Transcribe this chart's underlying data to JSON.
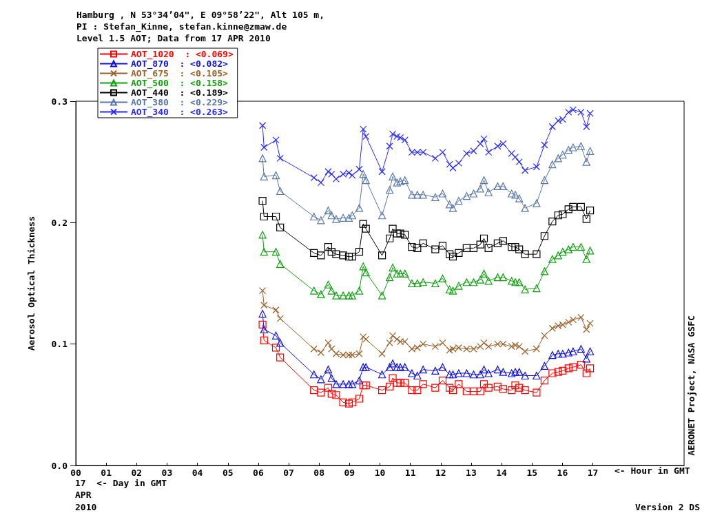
{
  "chart_data": {
    "type": "line",
    "title": "Hamburg , N 53°34’04\", E 09°58’22\", Alt 105 m,",
    "subtitle": "PI : Stefan_Kinne, stefan.kinne@zmaw.de\nLevel 1.5 AOT; Data from 17 APR 2010",
    "ylabel": "Aerosol Optical Thickness",
    "annotations": [
      "<- Hour in GMT",
      "17  <- Day in GMT",
      "APR",
      "2010",
      "AERONET Project, NASA GSFC",
      "Version 2 DS"
    ],
    "x": [
      6.14,
      6.19,
      6.58,
      6.72,
      7.83,
      8.06,
      8.3,
      8.41,
      8.56,
      8.79,
      8.98,
      9.09,
      9.32,
      9.45,
      9.54,
      10.07,
      10.32,
      10.42,
      10.56,
      10.67,
      10.82,
      11.05,
      11.23,
      11.42,
      11.82,
      12.06,
      12.29,
      12.4,
      12.59,
      12.85,
      13.08,
      13.3,
      13.42,
      13.57,
      13.87,
      14.05,
      14.33,
      14.45,
      14.58,
      14.77,
      15.15,
      15.41,
      15.67,
      15.86,
      16.01,
      16.2,
      16.35,
      16.61,
      16.79,
      16.91
    ],
    "xlim": [
      0,
      20
    ],
    "ylim": [
      0,
      0.3
    ],
    "xticks": [
      {
        "value": 0,
        "label": "00"
      },
      {
        "value": 1,
        "label": "01"
      },
      {
        "value": 2,
        "label": "02"
      },
      {
        "value": 3,
        "label": "03"
      },
      {
        "value": 4,
        "label": "04"
      },
      {
        "value": 5,
        "label": "05"
      },
      {
        "value": 6,
        "label": "06"
      },
      {
        "value": 7,
        "label": "07"
      },
      {
        "value": 8,
        "label": "08"
      },
      {
        "value": 9,
        "label": "09"
      },
      10,
      11,
      12,
      13,
      14,
      15,
      16,
      17
    ],
    "yticks": [
      {
        "value": 0,
        "label": "0.0"
      },
      {
        "value": 0.1,
        "label": "0.1"
      },
      {
        "value": 0.2,
        "label": "0.2"
      },
      {
        "value": 0.3,
        "label": "0.3"
      }
    ],
    "legend": "top left",
    "series": [
      {
        "name": "AOT_1020  : <0.069>",
        "color": "#ff0000",
        "marker": "square",
        "values": [
          0.116,
          0.103,
          0.097,
          0.089,
          0.062,
          0.06,
          0.064,
          0.059,
          0.058,
          0.052,
          0.051,
          0.052,
          0.055,
          0.066,
          0.066,
          0.062,
          0.065,
          0.072,
          0.068,
          0.068,
          0.068,
          0.062,
          0.062,
          0.067,
          0.064,
          0.07,
          0.064,
          0.062,
          0.067,
          0.061,
          0.061,
          0.061,
          0.067,
          0.064,
          0.065,
          0.063,
          0.062,
          0.066,
          0.064,
          0.062,
          0.06,
          0.07,
          0.076,
          0.077,
          0.078,
          0.08,
          0.081,
          0.083,
          0.076,
          0.08
        ]
      },
      {
        "name": "AOT_870  : <0.082>",
        "color": "#1010e0",
        "marker": "triangle",
        "values": [
          0.125,
          0.112,
          0.107,
          0.101,
          0.075,
          0.071,
          0.079,
          0.072,
          0.067,
          0.067,
          0.067,
          0.067,
          0.07,
          0.081,
          0.081,
          0.075,
          0.081,
          0.084,
          0.081,
          0.081,
          0.081,
          0.076,
          0.074,
          0.079,
          0.078,
          0.081,
          0.075,
          0.075,
          0.076,
          0.076,
          0.075,
          0.075,
          0.079,
          0.076,
          0.079,
          0.077,
          0.076,
          0.077,
          0.077,
          0.074,
          0.074,
          0.082,
          0.091,
          0.092,
          0.092,
          0.093,
          0.094,
          0.096,
          0.088,
          0.094
        ]
      },
      {
        "name": "AOT_675  : <0.105>",
        "color": "#99602a",
        "marker": "cross",
        "values": [
          0.144,
          0.132,
          0.128,
          0.121,
          0.096,
          0.093,
          0.101,
          0.096,
          0.092,
          0.091,
          0.091,
          0.091,
          0.092,
          0.106,
          0.104,
          0.092,
          0.101,
          0.107,
          0.104,
          0.102,
          0.102,
          0.096,
          0.097,
          0.1,
          0.098,
          0.101,
          0.095,
          0.096,
          0.097,
          0.096,
          0.096,
          0.098,
          0.101,
          0.098,
          0.1,
          0.1,
          0.098,
          0.099,
          0.098,
          0.094,
          0.096,
          0.107,
          0.113,
          0.115,
          0.116,
          0.118,
          0.12,
          0.122,
          0.112,
          0.117
        ]
      },
      {
        "name": "AOT_500  : <0.158>",
        "color": "#10a010",
        "marker": "triangle",
        "values": [
          0.19,
          0.176,
          0.176,
          0.166,
          0.144,
          0.141,
          0.149,
          0.144,
          0.14,
          0.14,
          0.14,
          0.14,
          0.144,
          0.164,
          0.159,
          0.14,
          0.155,
          0.163,
          0.158,
          0.158,
          0.158,
          0.15,
          0.15,
          0.151,
          0.15,
          0.154,
          0.145,
          0.144,
          0.148,
          0.151,
          0.151,
          0.153,
          0.158,
          0.152,
          0.155,
          0.155,
          0.152,
          0.151,
          0.151,
          0.145,
          0.146,
          0.16,
          0.17,
          0.173,
          0.176,
          0.178,
          0.18,
          0.18,
          0.17,
          0.177
        ]
      },
      {
        "name": "AOT_440  : <0.189>",
        "color": "#000000",
        "marker": "square",
        "values": [
          0.218,
          0.205,
          0.205,
          0.196,
          0.175,
          0.173,
          0.18,
          0.176,
          0.174,
          0.173,
          0.172,
          0.172,
          0.176,
          0.199,
          0.195,
          0.173,
          0.187,
          0.195,
          0.191,
          0.191,
          0.19,
          0.18,
          0.179,
          0.183,
          0.178,
          0.181,
          0.174,
          0.172,
          0.175,
          0.179,
          0.179,
          0.182,
          0.187,
          0.179,
          0.183,
          0.185,
          0.18,
          0.18,
          0.178,
          0.174,
          0.174,
          0.189,
          0.201,
          0.206,
          0.207,
          0.211,
          0.213,
          0.213,
          0.203,
          0.21
        ]
      },
      {
        "name": "AOT_380  : <0.229>",
        "color": "#5a78a8",
        "marker": "triangle",
        "values": [
          0.253,
          0.238,
          0.239,
          0.226,
          0.205,
          0.202,
          0.21,
          0.206,
          0.203,
          0.204,
          0.204,
          0.206,
          0.212,
          0.24,
          0.235,
          0.206,
          0.227,
          0.238,
          0.233,
          0.234,
          0.235,
          0.223,
          0.223,
          0.223,
          0.221,
          0.224,
          0.215,
          0.212,
          0.218,
          0.222,
          0.224,
          0.228,
          0.235,
          0.225,
          0.23,
          0.23,
          0.224,
          0.223,
          0.22,
          0.212,
          0.216,
          0.235,
          0.248,
          0.253,
          0.256,
          0.26,
          0.262,
          0.263,
          0.25,
          0.259
        ]
      },
      {
        "name": "AOT_340  : <0.263>",
        "color": "#2828ff",
        "marker": "cross",
        "values": [
          0.28,
          0.262,
          0.268,
          0.253,
          0.237,
          0.233,
          0.242,
          0.24,
          0.236,
          0.24,
          0.241,
          0.239,
          0.244,
          0.277,
          0.271,
          0.242,
          0.263,
          0.273,
          0.271,
          0.27,
          0.268,
          0.258,
          0.258,
          0.258,
          0.253,
          0.258,
          0.248,
          0.245,
          0.249,
          0.257,
          0.259,
          0.265,
          0.269,
          0.258,
          0.263,
          0.265,
          0.257,
          0.254,
          0.25,
          0.243,
          0.246,
          0.264,
          0.279,
          0.284,
          0.285,
          0.291,
          0.293,
          0.291,
          0.279,
          0.29
        ]
      }
    ]
  }
}
